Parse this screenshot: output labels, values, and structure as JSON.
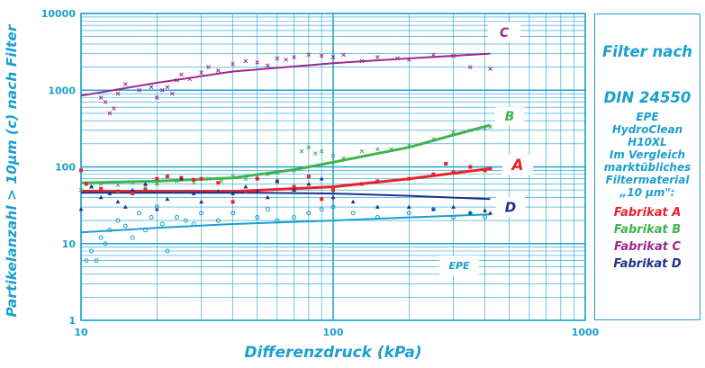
{
  "chart_data": {
    "type": "scatter",
    "ylabel": "Partikelanzahl > 10µm (c) nach Filter",
    "xlabel": "Differenzdruck (kPa)",
    "xscale": "log",
    "yscale": "log",
    "xlim": [
      10,
      1000
    ],
    "ylim": [
      1,
      10000
    ],
    "x_ticks": [
      "10",
      "100",
      "1000"
    ],
    "y_ticks": [
      "1",
      "10",
      "100",
      "1000",
      "10000"
    ],
    "grid": true,
    "series": [
      {
        "name": "C",
        "color": "#9b2a8f",
        "marker": "x",
        "curve": [
          [
            10,
            850
          ],
          [
            20,
            1250
          ],
          [
            40,
            1750
          ],
          [
            100,
            2250
          ],
          [
            200,
            2600
          ],
          [
            420,
            3000
          ]
        ],
        "points": [
          [
            12,
            800
          ],
          [
            12.5,
            700
          ],
          [
            13,
            500
          ],
          [
            13.5,
            580
          ],
          [
            14,
            900
          ],
          [
            15,
            1200
          ],
          [
            17,
            1000
          ],
          [
            19,
            1100
          ],
          [
            20,
            800
          ],
          [
            21,
            1000
          ],
          [
            22,
            1100
          ],
          [
            23,
            900
          ],
          [
            24,
            1350
          ],
          [
            25,
            1600
          ],
          [
            27,
            1400
          ],
          [
            30,
            1700
          ],
          [
            32,
            2000
          ],
          [
            35,
            1800
          ],
          [
            40,
            2200
          ],
          [
            45,
            2400
          ],
          [
            50,
            2300
          ],
          [
            55,
            2100
          ],
          [
            60,
            2600
          ],
          [
            65,
            2500
          ],
          [
            70,
            2700
          ],
          [
            80,
            2900
          ],
          [
            90,
            2800
          ],
          [
            100,
            2700
          ],
          [
            110,
            2900
          ],
          [
            130,
            2400
          ],
          [
            150,
            2700
          ],
          [
            180,
            2600
          ],
          [
            200,
            2500
          ],
          [
            250,
            2900
          ],
          [
            300,
            2800
          ],
          [
            350,
            2000
          ],
          [
            420,
            1900
          ]
        ]
      },
      {
        "name": "B",
        "color": "#3fb34f",
        "marker": "x",
        "curve": [
          [
            10,
            62
          ],
          [
            20,
            65
          ],
          [
            40,
            72
          ],
          [
            70,
            92
          ],
          [
            100,
            115
          ],
          [
            200,
            180
          ],
          [
            300,
            260
          ],
          [
            420,
            350
          ]
        ],
        "points": [
          [
            10,
            50
          ],
          [
            11,
            55
          ],
          [
            12,
            60
          ],
          [
            14,
            58
          ],
          [
            16,
            62
          ],
          [
            18,
            55
          ],
          [
            20,
            60
          ],
          [
            24,
            65
          ],
          [
            28,
            62
          ],
          [
            32,
            70
          ],
          [
            36,
            65
          ],
          [
            40,
            75
          ],
          [
            45,
            70
          ],
          [
            50,
            75
          ],
          [
            55,
            80
          ],
          [
            60,
            85
          ],
          [
            70,
            90
          ],
          [
            75,
            160
          ],
          [
            80,
            180
          ],
          [
            85,
            150
          ],
          [
            90,
            160
          ],
          [
            100,
            140
          ],
          [
            110,
            130
          ],
          [
            130,
            160
          ],
          [
            150,
            170
          ],
          [
            170,
            170
          ],
          [
            200,
            190
          ],
          [
            250,
            230
          ],
          [
            300,
            280
          ],
          [
            350,
            300
          ],
          [
            400,
            320
          ],
          [
            420,
            330
          ]
        ]
      },
      {
        "name": "A",
        "color": "#e8232b",
        "marker": "square",
        "curve": [
          [
            10,
            48
          ],
          [
            20,
            48
          ],
          [
            40,
            48
          ],
          [
            100,
            55
          ],
          [
            200,
            70
          ],
          [
            420,
            95
          ]
        ],
        "points": [
          [
            10,
            90
          ],
          [
            10.5,
            60
          ],
          [
            12,
            52
          ],
          [
            14,
            48
          ],
          [
            16,
            45
          ],
          [
            18,
            50
          ],
          [
            20,
            70
          ],
          [
            22,
            75
          ],
          [
            25,
            72
          ],
          [
            28,
            68
          ],
          [
            30,
            70
          ],
          [
            35,
            62
          ],
          [
            40,
            35
          ],
          [
            45,
            48
          ],
          [
            50,
            70
          ],
          [
            60,
            65
          ],
          [
            70,
            55
          ],
          [
            80,
            75
          ],
          [
            90,
            38
          ],
          [
            100,
            50
          ],
          [
            130,
            60
          ],
          [
            150,
            65
          ],
          [
            200,
            70
          ],
          [
            250,
            80
          ],
          [
            280,
            110
          ],
          [
            300,
            85
          ],
          [
            350,
            100
          ],
          [
            400,
            90
          ],
          [
            420,
            95
          ]
        ]
      },
      {
        "name": "D",
        "color": "#1f2f8f",
        "marker": "triangle",
        "curve": [
          [
            10,
            46
          ],
          [
            50,
            46
          ],
          [
            100,
            45
          ],
          [
            200,
            42
          ],
          [
            420,
            38
          ]
        ],
        "points": [
          [
            10,
            28
          ],
          [
            11,
            55
          ],
          [
            12,
            40
          ],
          [
            13,
            45
          ],
          [
            14,
            35
          ],
          [
            15,
            30
          ],
          [
            16,
            50
          ],
          [
            18,
            60
          ],
          [
            20,
            28
          ],
          [
            22,
            38
          ],
          [
            25,
            70
          ],
          [
            28,
            45
          ],
          [
            30,
            35
          ],
          [
            35,
            48
          ],
          [
            40,
            45
          ],
          [
            45,
            55
          ],
          [
            50,
            48
          ],
          [
            55,
            40
          ],
          [
            60,
            65
          ],
          [
            70,
            50
          ],
          [
            80,
            60
          ],
          [
            90,
            70
          ],
          [
            100,
            40
          ],
          [
            120,
            35
          ],
          [
            150,
            30
          ],
          [
            200,
            30
          ],
          [
            250,
            28
          ],
          [
            300,
            30
          ],
          [
            350,
            25
          ],
          [
            400,
            27
          ],
          [
            420,
            25
          ]
        ]
      },
      {
        "name": "EPE",
        "color": "#1a9fd0",
        "marker": "circle",
        "curve": [
          [
            10,
            14
          ],
          [
            20,
            16
          ],
          [
            40,
            18
          ],
          [
            100,
            20
          ],
          [
            200,
            22
          ],
          [
            420,
            24
          ]
        ],
        "points": [
          [
            10.5,
            6
          ],
          [
            11,
            8
          ],
          [
            11.5,
            6
          ],
          [
            12,
            12
          ],
          [
            12.5,
            10
          ],
          [
            13,
            15
          ],
          [
            14,
            20
          ],
          [
            15,
            17
          ],
          [
            16,
            12
          ],
          [
            17,
            25
          ],
          [
            18,
            15
          ],
          [
            19,
            22
          ],
          [
            20,
            30
          ],
          [
            21,
            18
          ],
          [
            22,
            8
          ],
          [
            24,
            22
          ],
          [
            26,
            20
          ],
          [
            28,
            18
          ],
          [
            30,
            25
          ],
          [
            35,
            20
          ],
          [
            40,
            25
          ],
          [
            50,
            22
          ],
          [
            55,
            28
          ],
          [
            60,
            20
          ],
          [
            70,
            22
          ],
          [
            80,
            25
          ],
          [
            90,
            28
          ],
          [
            100,
            30
          ],
          [
            120,
            25
          ],
          [
            150,
            22
          ],
          [
            200,
            25
          ],
          [
            250,
            28
          ],
          [
            300,
            22
          ],
          [
            350,
            25
          ],
          [
            400,
            22
          ]
        ]
      }
    ]
  },
  "plot_labels": {
    "c": "C",
    "b": "B",
    "a": "A",
    "d": "D",
    "epe": "EPE"
  },
  "legend": {
    "title1": "Filter nach",
    "title2": "DIN 24550",
    "lines": [
      "EPE",
      "HydroClean",
      "H10XL",
      "Im Vergleich",
      "marktübliches",
      "Filtermaterial",
      "„10 µm\":"
    ],
    "items": [
      {
        "label": "Fabrikat A",
        "color": "#e8232b"
      },
      {
        "label": "Fabrikat B",
        "color": "#3fb34f"
      },
      {
        "label": "Fabrikat C",
        "color": "#9b2a8f"
      },
      {
        "label": "Fabrikat D",
        "color": "#1f2f8f"
      }
    ]
  }
}
